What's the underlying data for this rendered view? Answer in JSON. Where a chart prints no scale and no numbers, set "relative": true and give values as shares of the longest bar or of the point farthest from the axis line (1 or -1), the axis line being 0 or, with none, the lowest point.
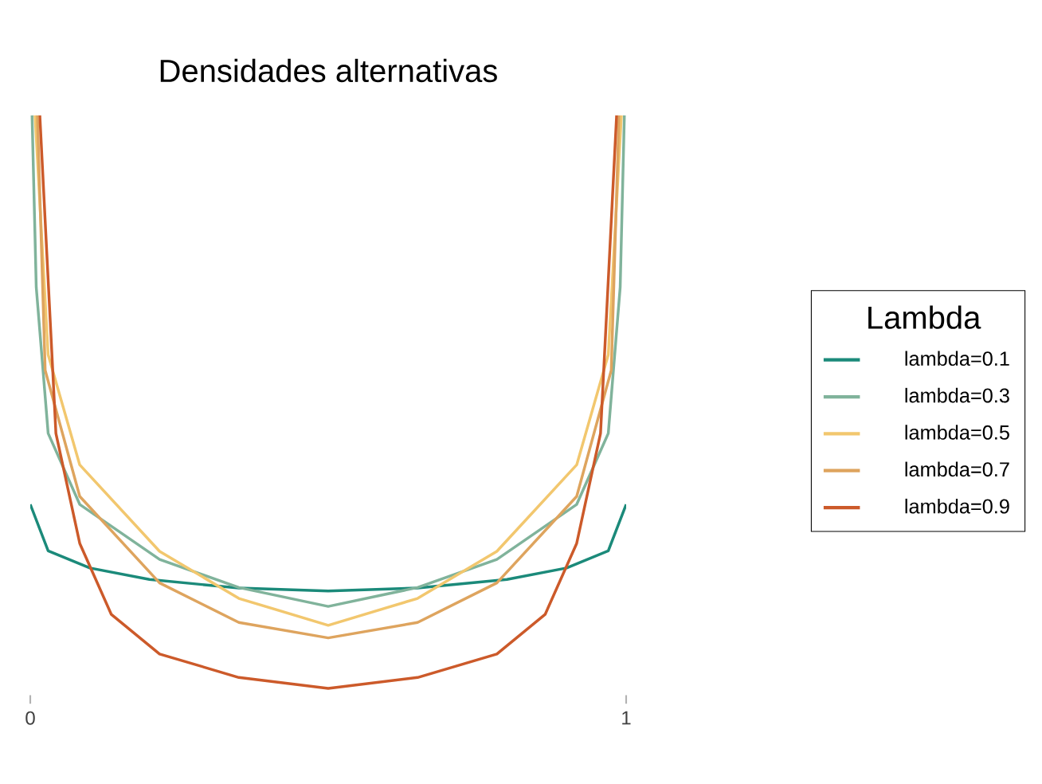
{
  "chart_data": {
    "type": "line",
    "title": "Densidades alternativas",
    "legend_title": "Lambda",
    "relative": true,
    "legend": "right",
    "xlim": [
      0,
      1
    ],
    "xticks": [
      0,
      1
    ],
    "series": [
      {
        "name": "lambda=0.1",
        "color": "#1b8a7a",
        "x": [
          0,
          0.03,
          0.1,
          0.2,
          0.35,
          0.5,
          0.65,
          0.8,
          0.9,
          0.97,
          1
        ],
        "values": [
          0.321,
          0.24,
          0.21,
          0.19,
          0.175,
          0.17,
          0.175,
          0.19,
          0.21,
          0.24,
          0.321
        ]
      },
      {
        "name": "lambda=0.3",
        "color": "#80b39b",
        "x": [
          0.003,
          0.01,
          0.03,
          0.083,
          0.217,
          0.35,
          0.5,
          0.65,
          0.783,
          0.917,
          0.97,
          0.99,
          0.997
        ],
        "values": [
          1,
          0.7,
          0.445,
          0.321,
          0.225,
          0.176,
          0.143,
          0.176,
          0.225,
          0.321,
          0.445,
          0.7,
          1
        ]
      },
      {
        "name": "lambda=0.5",
        "color": "#f2c76e",
        "x": [
          0.008,
          0.03,
          0.083,
          0.217,
          0.35,
          0.5,
          0.65,
          0.783,
          0.917,
          0.97,
          0.992
        ],
        "values": [
          1,
          0.582,
          0.39,
          0.239,
          0.157,
          0.11,
          0.157,
          0.239,
          0.39,
          0.582,
          1
        ]
      },
      {
        "name": "lambda=0.7",
        "color": "#dea45e",
        "x": [
          0.012,
          0.025,
          0.083,
          0.217,
          0.35,
          0.5,
          0.65,
          0.783,
          0.917,
          0.975,
          0.988
        ],
        "values": [
          1,
          0.555,
          0.335,
          0.184,
          0.115,
          0.088,
          0.115,
          0.184,
          0.335,
          0.555,
          1
        ]
      },
      {
        "name": "lambda=0.9",
        "color": "#cc5a2a",
        "x": [
          0.016,
          0.043,
          0.083,
          0.136,
          0.217,
          0.35,
          0.5,
          0.65,
          0.783,
          0.864,
          0.917,
          0.957,
          0.984
        ],
        "values": [
          1,
          0.445,
          0.253,
          0.129,
          0.06,
          0.019,
          0,
          0.019,
          0.06,
          0.129,
          0.253,
          0.445,
          1
        ]
      }
    ]
  }
}
